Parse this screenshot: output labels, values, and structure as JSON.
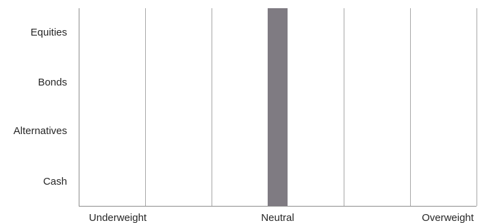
{
  "chart_data": {
    "type": "bar",
    "orientation": "horizontal",
    "categories": [
      "Equities",
      "Bonds",
      "Alternatives",
      "Cash"
    ],
    "x_range": [
      0,
      6
    ],
    "grid_x": [
      1,
      2,
      3,
      4,
      5,
      6
    ],
    "x_labels": [
      {
        "value": 0,
        "text": "Underweight"
      },
      {
        "value": 3,
        "text": "Neutral"
      },
      {
        "value": 6,
        "text": "Overweight"
      }
    ],
    "neutral_band": {
      "from": 2.85,
      "to": 3.15,
      "color": "#7f7b82"
    },
    "grid_color": "#a6a6a6",
    "axis_color": "#8c8c8c",
    "title": "",
    "xlabel": "",
    "ylabel": "",
    "legend": "none"
  }
}
